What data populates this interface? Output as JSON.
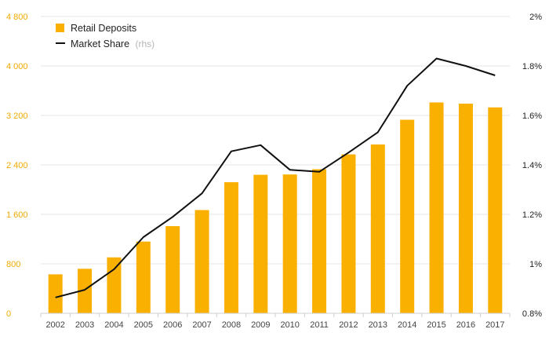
{
  "chart_data": {
    "type": "bar",
    "categories": [
      "2002",
      "2003",
      "2004",
      "2005",
      "2006",
      "2007",
      "2008",
      "2009",
      "2010",
      "2011",
      "2012",
      "2013",
      "2014",
      "2015",
      "2016",
      "2017"
    ],
    "series": [
      {
        "name": "Retail Deposits",
        "type": "bar",
        "axis": "left",
        "color": "#f9b000",
        "values": [
          630,
          720,
          905,
          1160,
          1410,
          1670,
          2120,
          2240,
          2245,
          2330,
          2570,
          2730,
          3130,
          3410,
          3390,
          3330
        ]
      },
      {
        "name": "Market Share",
        "name_suffix": "(rhs)",
        "type": "line",
        "axis": "right",
        "color": "#111111",
        "values": [
          0.864,
          0.895,
          0.978,
          1.108,
          1.19,
          1.285,
          1.455,
          1.48,
          1.38,
          1.372,
          1.45,
          1.532,
          1.72,
          1.83,
          1.8,
          1.762
        ]
      }
    ],
    "yleft": {
      "ylim": [
        0,
        4800
      ],
      "ticks": [
        0,
        800,
        1600,
        2400,
        3200,
        4000,
        4800
      ],
      "tick_labels": [
        "0",
        "800",
        "1 600",
        "2 400",
        "3 200",
        "4 000",
        "4 800"
      ],
      "color": "#f0aa00"
    },
    "yright": {
      "ylim": [
        0.8,
        2.0
      ],
      "ticks": [
        0.8,
        1.0,
        1.2,
        1.4,
        1.6,
        1.8,
        2.0
      ],
      "tick_labels": [
        "0.8%",
        "1%",
        "1.2%",
        "1.4%",
        "1.6%",
        "1.8%",
        "2%"
      ]
    },
    "title": "",
    "xlabel": "",
    "ylabel": "",
    "grid": true,
    "legend_position": "top-left"
  }
}
